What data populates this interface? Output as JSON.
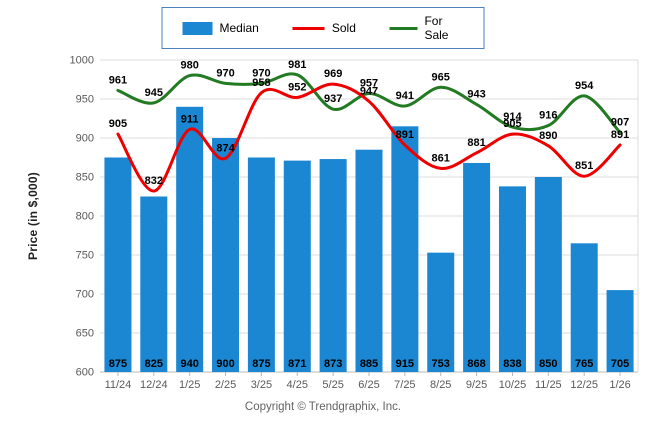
{
  "footer": {
    "copyright": "Copyright © Trendgraphix, Inc."
  },
  "colors": {
    "bar": "#1b86d1",
    "sold_line": "#ee0000",
    "for_sale_line": "#227a22",
    "grid": "#dcdcdc",
    "axis": "#b8b8b8",
    "tick_text": "#5a5a5a",
    "data_label_text": "#000000",
    "legend_border": "#4f81bd"
  },
  "chart_data": {
    "type": "combo-bar-line",
    "categories": [
      "11/24",
      "12/24",
      "1/25",
      "2/25",
      "3/25",
      "4/25",
      "5/25",
      "6/25",
      "7/25",
      "8/25",
      "9/25",
      "10/25",
      "11/25",
      "12/25",
      "1/26"
    ],
    "series": [
      {
        "name": "Median",
        "type": "bar",
        "color": "#1b86d1",
        "values": [
          875,
          825,
          940,
          900,
          875,
          871,
          873,
          885,
          915,
          753,
          868,
          838,
          850,
          765,
          705
        ]
      },
      {
        "name": "Sold",
        "type": "line",
        "color": "#ee0000",
        "values": [
          905,
          832,
          911,
          874,
          958,
          952,
          969,
          947,
          891,
          861,
          881,
          905,
          890,
          851,
          891
        ]
      },
      {
        "name": "For Sale",
        "type": "line",
        "color": "#227a22",
        "values": [
          961,
          945,
          980,
          970,
          970,
          981,
          937,
          957,
          941,
          965,
          943,
          914,
          916,
          954,
          907
        ]
      }
    ],
    "title": "",
    "xlabel": "",
    "ylabel": "Price (in $,000)",
    "ylim": [
      600,
      1000
    ],
    "yticks": [
      600,
      650,
      700,
      750,
      800,
      850,
      900,
      950,
      1000
    ],
    "grid": true,
    "legend_position": "top-center",
    "data_labels": true
  }
}
